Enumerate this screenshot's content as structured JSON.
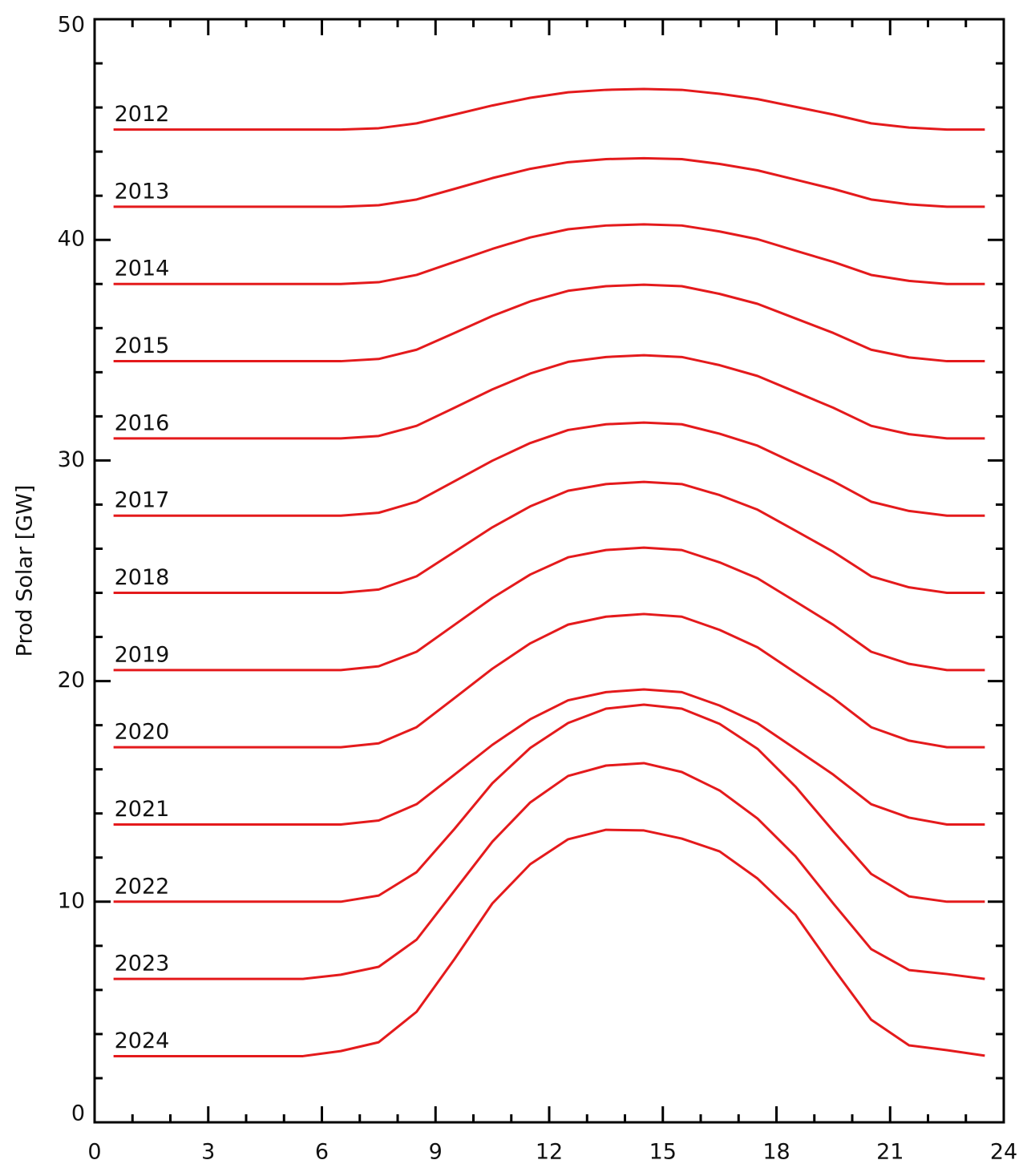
{
  "chart_data": {
    "type": "line",
    "y_label": "Prod Solar [GW]",
    "x": [
      0.5,
      1.5,
      2.5,
      3.5,
      4.5,
      5.5,
      6.5,
      7.5,
      8.5,
      9.5,
      10.5,
      11.5,
      12.5,
      13.5,
      14.5,
      15.5,
      16.5,
      17.5,
      18.5,
      19.5,
      20.5,
      21.5,
      22.5,
      23.5
    ],
    "xlim": [
      0,
      24
    ],
    "xticks": [
      0,
      3,
      6,
      9,
      12,
      15,
      18,
      21,
      24
    ],
    "ylim": [
      0,
      50
    ],
    "yticks": [
      0,
      10,
      20,
      30,
      40,
      50
    ],
    "series": [
      {
        "name": "2012",
        "color": "#e41a1c",
        "values": [
          45,
          45,
          45,
          45,
          45,
          45,
          45,
          45.06,
          45.28,
          45.68,
          46.09,
          46.44,
          46.69,
          46.8,
          46.84,
          46.8,
          46.62,
          46.38,
          46.03,
          45.68,
          45.28,
          45.09,
          45,
          45
        ]
      },
      {
        "name": "2013",
        "color": "#e41a1c",
        "values": [
          41.5,
          41.5,
          41.5,
          41.5,
          41.5,
          41.5,
          41.5,
          41.57,
          41.83,
          42.31,
          42.8,
          43.22,
          43.52,
          43.66,
          43.7,
          43.66,
          43.44,
          43.15,
          42.73,
          42.31,
          41.83,
          41.61,
          41.5,
          41.5
        ]
      },
      {
        "name": "2014",
        "color": "#e41a1c",
        "values": [
          38,
          38,
          38,
          38,
          38,
          38,
          38,
          38.08,
          38.41,
          39.0,
          39.59,
          40.11,
          40.48,
          40.65,
          40.7,
          40.65,
          40.38,
          40.03,
          39.51,
          39.0,
          38.41,
          38.14,
          38,
          38
        ]
      },
      {
        "name": "2015",
        "color": "#e41a1c",
        "values": [
          34.5,
          34.5,
          34.5,
          34.5,
          34.5,
          34.5,
          34.5,
          34.6,
          35.02,
          35.78,
          36.55,
          37.21,
          37.69,
          37.9,
          37.97,
          37.9,
          37.55,
          37.1,
          36.44,
          35.78,
          35.02,
          34.67,
          34.5,
          34.5
        ]
      },
      {
        "name": "2016",
        "color": "#e41a1c",
        "values": [
          31,
          31,
          31,
          31,
          31,
          31,
          31,
          31.11,
          31.57,
          32.39,
          33.22,
          33.94,
          34.47,
          34.69,
          34.77,
          34.69,
          34.32,
          33.83,
          33.11,
          32.39,
          31.57,
          31.19,
          31,
          31
        ]
      },
      {
        "name": "2017",
        "color": "#e41a1c",
        "values": [
          27.5,
          27.5,
          27.5,
          27.5,
          27.5,
          27.5,
          27.5,
          27.63,
          28.13,
          29.06,
          29.99,
          30.79,
          31.38,
          31.64,
          31.72,
          31.64,
          31.21,
          30.67,
          29.86,
          29.06,
          28.13,
          27.71,
          27.5,
          27.5
        ]
      },
      {
        "name": "2018",
        "color": "#e41a1c",
        "values": [
          24,
          24,
          24,
          24,
          24,
          24,
          24,
          24.15,
          24.75,
          25.86,
          26.97,
          27.92,
          28.63,
          28.93,
          29.03,
          28.93,
          28.43,
          27.77,
          26.82,
          25.86,
          24.75,
          24.25,
          24,
          24
        ]
      },
      {
        "name": "2019",
        "color": "#e41a1c",
        "values": [
          20.5,
          20.5,
          20.5,
          20.5,
          20.5,
          20.5,
          20.5,
          20.67,
          21.33,
          22.55,
          23.77,
          24.83,
          25.61,
          25.94,
          26.05,
          25.94,
          25.38,
          24.66,
          23.61,
          22.55,
          21.33,
          20.78,
          20.5,
          20.5
        ]
      },
      {
        "name": "2020",
        "color": "#e41a1c",
        "values": [
          17,
          17,
          17,
          17,
          17,
          17,
          17,
          17.18,
          17.91,
          19.23,
          20.56,
          21.71,
          22.56,
          22.92,
          23.04,
          22.92,
          22.32,
          21.53,
          20.38,
          19.23,
          17.91,
          17.3,
          17,
          17
        ]
      },
      {
        "name": "2021",
        "color": "#e41a1c",
        "values": [
          13.5,
          13.5,
          13.5,
          13.5,
          13.5,
          13.5,
          13.5,
          13.68,
          14.42,
          15.76,
          17.11,
          18.27,
          19.13,
          19.5,
          19.62,
          19.5,
          18.89,
          18.09,
          16.93,
          15.76,
          14.42,
          13.81,
          13.5,
          13.5
        ]
      },
      {
        "name": "2022",
        "color": "#e41a1c",
        "values": [
          10,
          10,
          10,
          10,
          10,
          10,
          10,
          10.28,
          11.34,
          13.3,
          15.37,
          16.97,
          18.1,
          18.75,
          18.93,
          18.75,
          18.06,
          16.93,
          15.22,
          13.2,
          11.26,
          10.24,
          10,
          10
        ]
      },
      {
        "name": "2023",
        "color": "#e41a1c",
        "values": [
          6.5,
          6.5,
          6.5,
          6.5,
          6.5,
          6.5,
          6.69,
          7.05,
          8.28,
          10.5,
          12.72,
          14.5,
          15.7,
          16.17,
          16.28,
          15.88,
          15.04,
          13.77,
          12.06,
          9.92,
          7.85,
          6.9,
          6.72,
          6.5
        ]
      },
      {
        "name": "2024",
        "color": "#e41a1c",
        "values": [
          3,
          3,
          3,
          3,
          3,
          3,
          3.23,
          3.63,
          5.01,
          7.4,
          9.92,
          11.7,
          12.83,
          13.26,
          13.23,
          12.86,
          12.28,
          11.05,
          9.41,
          6.98,
          4.65,
          3.49,
          3.27,
          3.02
        ]
      }
    ]
  }
}
